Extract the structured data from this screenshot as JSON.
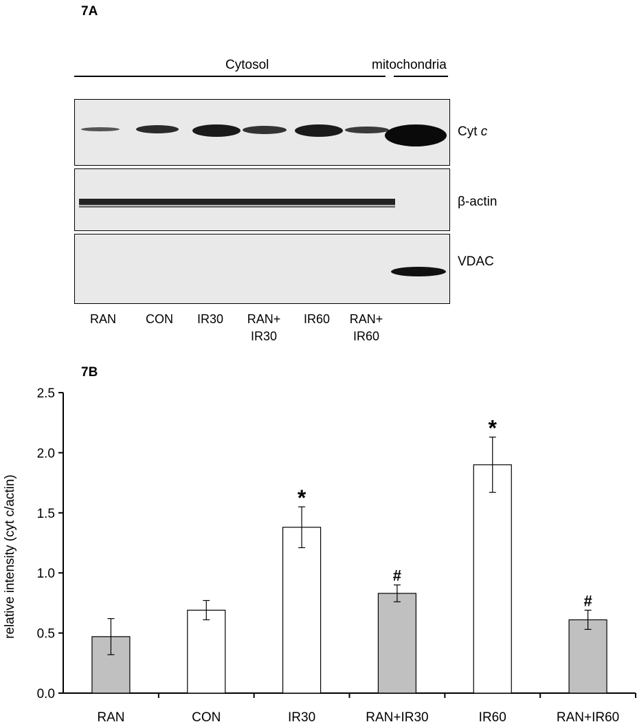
{
  "panel_a": {
    "label": "7A",
    "headers": {
      "cytosol": "Cytosol",
      "mitochondria": "mitochondria"
    },
    "proteins": {
      "cyt_prefix": "Cyt ",
      "cyt_italic": "c",
      "beta_actin": "β-actin",
      "vdac": "VDAC"
    },
    "lanes": [
      {
        "line1": "RAN",
        "line2": ""
      },
      {
        "line1": "CON",
        "line2": ""
      },
      {
        "line1": "IR30",
        "line2": ""
      },
      {
        "line1": "RAN+",
        "line2": "IR30"
      },
      {
        "line1": "IR60",
        "line2": ""
      },
      {
        "line1": "RAN+",
        "line2": "IR60"
      }
    ]
  },
  "panel_b": {
    "label": "7B"
  },
  "chart_data": {
    "type": "bar",
    "title": "",
    "xlabel": "",
    "ylabel": "relative intensity (cyt c/actin)",
    "ylim": [
      0,
      2.5
    ],
    "yticks": [
      "0.0",
      "0.5",
      "1.0",
      "1.5",
      "2.0",
      "2.5"
    ],
    "categories": [
      "RAN",
      "CON",
      "IR30",
      "RAN+IR30",
      "IR60",
      "RAN+IR60"
    ],
    "values": [
      0.47,
      0.69,
      1.38,
      0.83,
      1.9,
      0.61
    ],
    "errors": [
      0.15,
      0.08,
      0.17,
      0.07,
      0.23,
      0.08
    ],
    "bar_colors": [
      "#c0c0c0",
      "#ffffff",
      "#ffffff",
      "#c0c0c0",
      "#ffffff",
      "#c0c0c0"
    ],
    "annotations": [
      "",
      "",
      "*",
      "#",
      "*",
      "#"
    ]
  }
}
